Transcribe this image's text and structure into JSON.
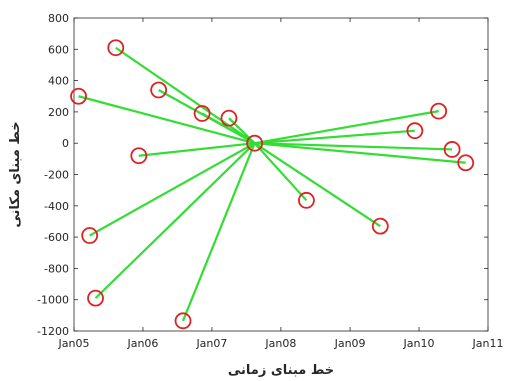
{
  "chart_data": {
    "type": "scatter",
    "title": "",
    "xlabel": "خط مبنای زمانی",
    "ylabel": "خط مبنای مکانی",
    "x_ticks": [
      "Jan05",
      "Jan06",
      "Jan07",
      "Jan08",
      "Jan09",
      "Jan10",
      "Jan11"
    ],
    "y_ticks": [
      -1200,
      -1000,
      -800,
      -600,
      -400,
      -200,
      0,
      200,
      400,
      600,
      800
    ],
    "xlim": [
      "2005-01-01",
      "2011-01-01"
    ],
    "ylim": [
      -1200,
      800
    ],
    "grid": false,
    "legend": "none",
    "reference": {
      "date": "2007-08-15",
      "value": 0
    },
    "points": [
      {
        "date": "2005-08-10",
        "value": 610
      },
      {
        "date": "2006-03-25",
        "value": 340
      },
      {
        "date": "2006-11-10",
        "value": 190
      },
      {
        "date": "2007-04-01",
        "value": 160
      },
      {
        "date": "2005-01-25",
        "value": 300
      },
      {
        "date": "2005-12-10",
        "value": -80
      },
      {
        "date": "2005-03-25",
        "value": -590
      },
      {
        "date": "2005-04-25",
        "value": -990
      },
      {
        "date": "2006-08-01",
        "value": -1135
      },
      {
        "date": "2008-05-15",
        "value": -365
      },
      {
        "date": "2009-06-10",
        "value": -530
      },
      {
        "date": "2009-12-10",
        "value": 80
      },
      {
        "date": "2010-04-15",
        "value": 205
      },
      {
        "date": "2010-06-25",
        "value": -40
      },
      {
        "date": "2010-09-05",
        "value": -125
      }
    ],
    "colors": {
      "line": "#33dd33",
      "marker": "#dd2222",
      "axis": "#262626"
    }
  }
}
